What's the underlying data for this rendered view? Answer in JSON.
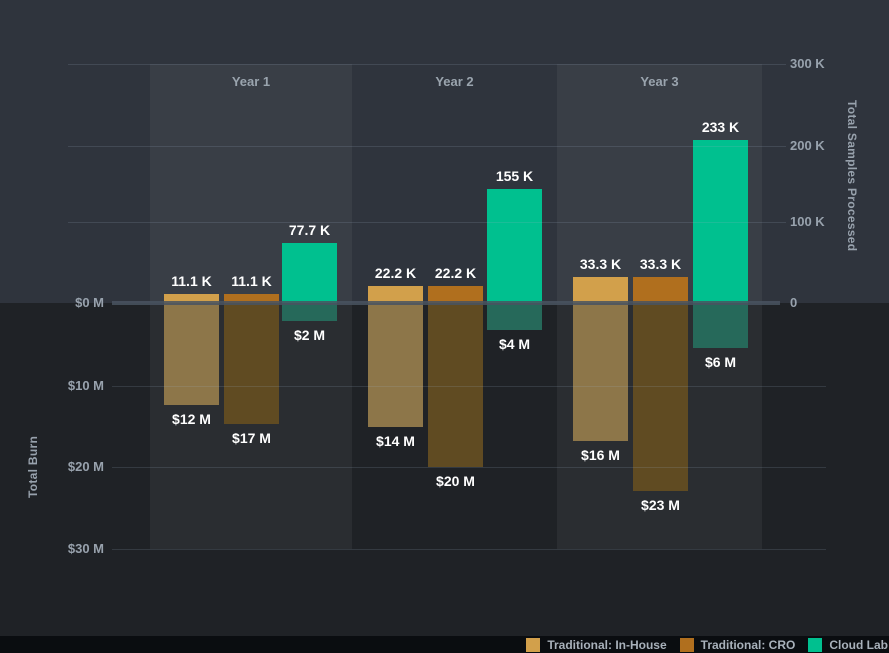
{
  "chart_data": {
    "type": "bar",
    "description": "Grouped diverging bar chart: total samples processed (up) vs total burn (down) per year",
    "categories": [
      "Year 1",
      "Year 2",
      "Year 3"
    ],
    "left_axis": {
      "title": "Total Burn",
      "tick_labels": [
        "$0 M",
        "$10 M",
        "$20 M",
        "$30 M"
      ],
      "range_usd_m": [
        0,
        30
      ],
      "direction": "increasing-downward"
    },
    "right_axis": {
      "title": "Total Samples Processed",
      "tick_labels": [
        "300 K",
        "200 K",
        "100 K",
        "0"
      ],
      "range_samples": [
        0,
        300000
      ]
    },
    "grid": true,
    "series": [
      {
        "name": "Traditional: In-House",
        "slug": "in-house",
        "color": "#d2a04b",
        "negative_color": "#8d7649",
        "samples_processed_k": [
          11.1,
          22.2,
          33.3
        ],
        "samples_labels": [
          "11.1 K",
          "22.2 K",
          "33.3 K"
        ],
        "burn_usd_m": [
          12,
          14,
          16
        ],
        "burn_labels": [
          "$12 M",
          "$14 M",
          "$16 M"
        ]
      },
      {
        "name": "Traditional: CRO",
        "slug": "cro",
        "color": "#b06f1e",
        "negative_color": "#604b22",
        "samples_processed_k": [
          11.1,
          22.2,
          33.3
        ],
        "samples_labels": [
          "11.1 K",
          "22.2 K",
          "33.3 K"
        ],
        "burn_usd_m": [
          17,
          20,
          23
        ],
        "burn_labels": [
          "$17 M",
          "$20 M",
          "$23 M"
        ]
      },
      {
        "name": "Cloud Lab",
        "slug": "cloud-lab",
        "color": "#00c08f",
        "negative_color": "#26695a",
        "samples_processed_k": [
          77.7,
          155,
          233
        ],
        "samples_labels": [
          "77.7 K",
          "155 K",
          "233 K"
        ],
        "burn_usd_m": [
          2,
          4,
          6
        ],
        "burn_labels": [
          "$2 M",
          "$4 M",
          "$6 M"
        ]
      }
    ],
    "legend": {
      "position": "bottom-right",
      "items": [
        "Traditional: In-House",
        "Traditional: CRO",
        "Cloud Lab"
      ]
    }
  },
  "colors": {
    "background_upper": "#2f343d",
    "background_lower": "#1f2226",
    "footer_bar": "#0a0d10",
    "zero_line": "#4a535f",
    "tick_text": "#98a2ad",
    "bar_label_text": "#ffffff"
  }
}
